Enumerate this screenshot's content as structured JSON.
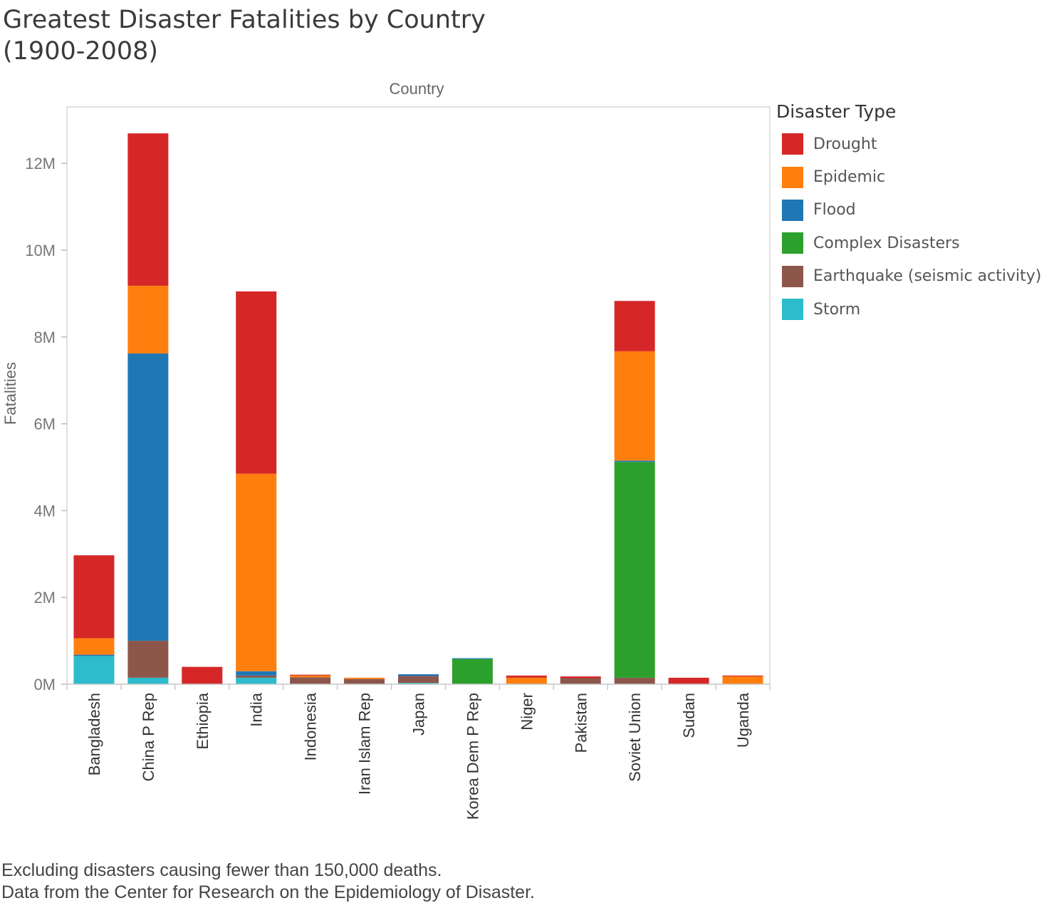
{
  "title_lines": [
    "Greatest Disaster Fatalities by Country",
    "(1900-2008)"
  ],
  "footnotes": [
    "Excluding disasters causing fewer than 150,000 deaths.",
    "Data from the Center for Research on the Epidemiology of Disaster."
  ],
  "chart_data": {
    "type": "bar",
    "stacked": true,
    "xlabel": "Country",
    "ylabel": "Fatalities",
    "ylim": [
      0,
      13300000
    ],
    "yticks": [
      0,
      2000000,
      4000000,
      6000000,
      8000000,
      10000000,
      12000000
    ],
    "ytick_labels": [
      "0M",
      "2M",
      "4M",
      "6M",
      "8M",
      "10M",
      "12M"
    ],
    "grid": false,
    "legend_title": "Disaster Type",
    "legend_position": "right",
    "categories": [
      "Bangladesh",
      "China P Rep",
      "Ethiopia",
      "India",
      "Indonesia",
      "Iran Islam Rep",
      "Japan",
      "Korea Dem P Rep",
      "Niger",
      "Pakistan",
      "Soviet Union",
      "Sudan",
      "Uganda"
    ],
    "series": [
      {
        "name": "Storm",
        "color": "#2cbccb",
        "values": [
          650000,
          150000,
          0,
          150000,
          0,
          0,
          30000,
          0,
          0,
          0,
          0,
          0,
          0
        ]
      },
      {
        "name": "Earthquake (seismic activity)",
        "color": "#8c564b",
        "values": [
          0,
          850000,
          0,
          50000,
          160000,
          120000,
          160000,
          0,
          0,
          140000,
          150000,
          0,
          0
        ]
      },
      {
        "name": "Complex Disasters",
        "color": "#2ca02c",
        "values": [
          0,
          0,
          0,
          0,
          0,
          0,
          0,
          580000,
          0,
          0,
          4970000,
          0,
          0
        ]
      },
      {
        "name": "Flood",
        "color": "#1f77b4",
        "values": [
          30000,
          6620000,
          0,
          100000,
          0,
          0,
          40000,
          20000,
          0,
          0,
          30000,
          0,
          0
        ]
      },
      {
        "name": "Epidemic",
        "color": "#ff7f0e",
        "values": [
          380000,
          1560000,
          0,
          4550000,
          40000,
          30000,
          0,
          0,
          150000,
          0,
          2520000,
          0,
          180000
        ]
      },
      {
        "name": "Drought",
        "color": "#d62728",
        "values": [
          1910000,
          3510000,
          400000,
          4200000,
          20000,
          0,
          0,
          0,
          50000,
          40000,
          1160000,
          150000,
          20000
        ]
      }
    ],
    "legend_order": [
      "Drought",
      "Epidemic",
      "Flood",
      "Complex Disasters",
      "Earthquake (seismic activity)",
      "Storm"
    ]
  }
}
